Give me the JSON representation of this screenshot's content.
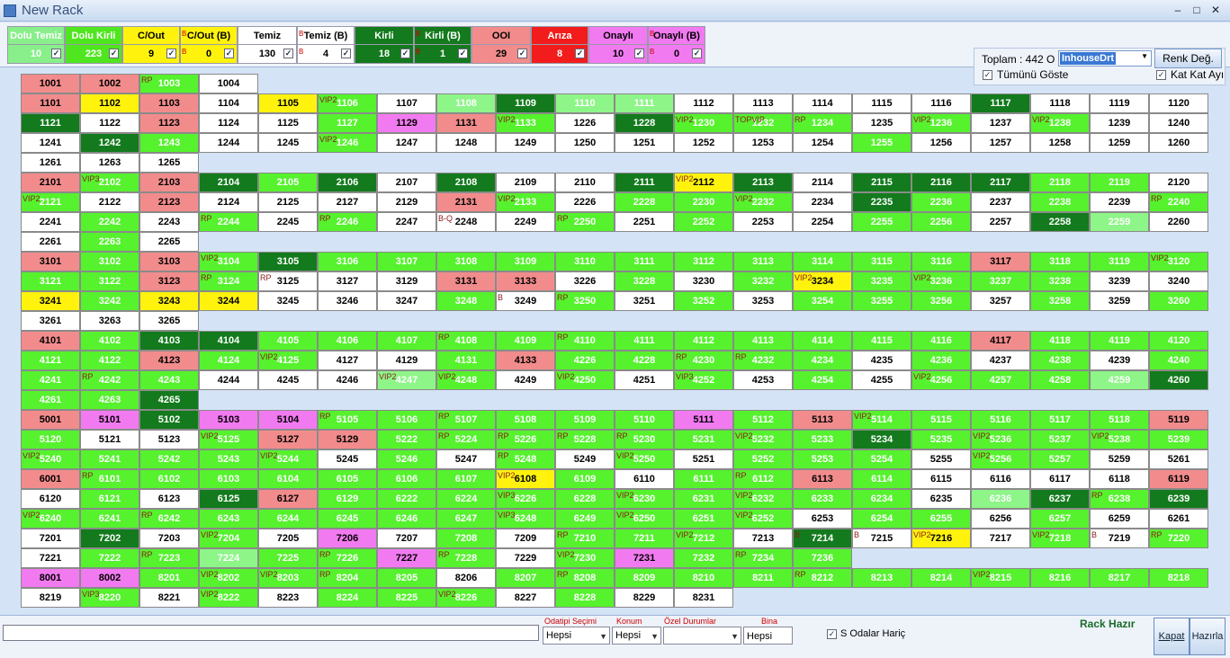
{
  "window": {
    "title": "New Rack"
  },
  "filters": [
    {
      "label": "Dolu Temiz",
      "value": "10",
      "checked": true,
      "color": "#88ef8a",
      "b": false
    },
    {
      "label": "Dolu Kirli",
      "value": "223",
      "checked": true,
      "color": "#4fe61f",
      "b": false
    },
    {
      "label": "C/Out",
      "value": "9",
      "checked": true,
      "color": "#fff30e",
      "b": false
    },
    {
      "label": "C/Out (B)",
      "value": "0",
      "checked": true,
      "color": "#fff30e",
      "b": true
    },
    {
      "label": "Temiz",
      "value": "130",
      "checked": true,
      "color": "#ffffff",
      "b": false
    },
    {
      "label": "Temiz (B)",
      "value": "4",
      "checked": true,
      "color": "#ffffff",
      "b": true
    },
    {
      "label": "Kirli",
      "value": "18",
      "checked": true,
      "color": "#137a1d",
      "b": false
    },
    {
      "label": "Kirli (B)",
      "value": "1",
      "checked": true,
      "color": "#137a1d",
      "b": true
    },
    {
      "label": "OOI",
      "value": "29",
      "checked": true,
      "color": "#f28c8c",
      "b": false
    },
    {
      "label": "Arıza",
      "value": "8",
      "checked": true,
      "color": "#f21c1c",
      "b": false
    },
    {
      "label": "Onaylı",
      "value": "10",
      "checked": true,
      "color": "#f27af0",
      "b": false
    },
    {
      "label": "Onaylı (B)",
      "value": "0",
      "checked": true,
      "color": "#f27af0",
      "b": true
    }
  ],
  "summary": {
    "total_label": "Toplam : 442 O",
    "dropdown_value": "InhouseDrt",
    "color_button": "Renk Değ.",
    "show_all": "Tümünü Göste",
    "show_all_checked": true,
    "floor_label": "Kat Kat Ayı",
    "floor_checked": true
  },
  "rack_rows": [
    "1001:R,1002:R,1003:L:RP,1004:W",
    "1101:R,1102:Y,1103:R,1104:W,1105:Y,1106:L:VIP2,1107:W,1108:M,1109:D,1110:M,1111:M,1112:W,1113:W,1114:W,1115:W,1116:W,1117:D,1118:W,1119:W,1120:W",
    "1121:D,1122:W,1123:R,1124:W,1125:W,1127:L,1129:P,1131:R,1133:L:VIP2,1226:W,1228:D,1230:L:VIP2,1232:L:TOPVIP,1234:L:RP,1235:W,1236:L:VIP2,1237:W,1238:L:VIP2,1239:W,1240:W",
    "1241:W,1242:D,1243:L,1244:W,1245:W,1246:L:VIP2,1247:W,1248:W,1249:W,1250:W,1251:W,1252:W,1253:W,1254:W,1255:L,1256:W,1257:W,1258:W,1259:W,1260:W",
    "1261:W,1263:W,1265:W",
    "2101:R,2102:L:VIP3,2103:R,2104:D,2105:L,2106:D,2107:W,2108:D,2109:W,2110:W,2111:D,2112:Y:VIP2,2113:D,2114:W,2115:D,2116:D,2117:D,2118:L,2119:L,2120:W",
    "2121:L:VIP2,2122:W,2123:R,2124:W,2125:W,2127:W,2129:W,2131:R,2133:L:VIP2,2226:W,2228:L,2230:L,2232:L:VIP2,2234:W,2235:D,2236:L,2237:W,2238:L,2239:W,2240:L:RP",
    "2241:W,2242:L,2243:W,2244:L:RP,2245:W,2246:L:RP,2247:W,2248:W:B-Q,2249:W,2250:L:RP,2251:W,2252:L,2253:W,2254:W,2255:L,2256:L,2257:W,2258:D,2259:M,2260:W",
    "2261:W,2263:L,2265:W",
    "3101:R,3102:L,3103:R,3104:L:VIP2,3105:D,3106:L,3107:L,3108:L,3109:L,3110:L,3111:L,3112:L,3113:L,3114:L,3115:L,3116:L,3117:R,3118:L,3119:L,3120:L:VIP2",
    "3121:L,3122:L,3123:R,3124:L:RP,3125:W:RP,3127:W,3129:W,3131:R,3133:R,3226:W,3228:L,3230:W,3232:L,3234:Y:VIP2,3235:L,3236:L:VIP2,3237:L,3238:L,3239:W,3240:W",
    "3241:Y,3242:L,3243:Y,3244:Y,3245:W,3246:W,3247:W,3248:L,3249:W:B,3250:L:RP,3251:W,3252:L,3253:W,3254:L,3255:L,3256:L,3257:W,3258:L,3259:W,3260:L",
    "3261:W,3263:W,3265:W",
    "4101:R,4102:L,4103:D,4104:D,4105:L,4106:L,4107:L,4108:L:RP,4109:L,4110:L:RP,4111:L,4112:L,4113:L,4114:L,4115:L,4116:L,4117:R,4118:L,4119:L,4120:L",
    "4121:L,4122:L,4123:R,4124:L,4125:L:VIP2,4127:W,4129:W,4131:L,4133:R,4226:L,4228:L,4230:L:RP,4232:L:RP,4234:L,4235:W,4236:L,4237:W,4238:L,4239:W,4240:L",
    "4241:L,4242:L:RP,4243:L,4244:W,4245:W,4246:W,4247:M:VIP2,4248:L:VIP2,4249:W,4250:L:VIP2,4251:W,4252:L:VIP3,4253:W,4254:L,4255:W,4256:L:VIP2,4257:L,4258:L,4259:M,4260:D",
    "4261:L,4263:L,4265:D",
    "5001:R,5101:P,5102:D,5103:P,5104:P,5105:L:RP,5106:L,5107:L:RP,5108:L,5109:L,5110:L,5111:P,5112:L,5113:R,5114:L:VIP2,5115:L,5116:L,5117:L,5118:L,5119:R",
    "5120:L,5121:W,5123:W,5125:L:VIP2,5127:R,5129:R,5222:L,5224:L:RP,5226:L:RP,5228:L:RP,5230:L:RP,5231:L,5232:L:VIP2,5233:L,5234:D,5235:L,5236:L:VIP2,5237:L,5238:L:VIP2,5239:L",
    "5240:L:VIP2,5241:L,5242:L,5243:L,5244:L:VIP2,5245:W,5246:L,5247:W,5248:L:RP,5249:W,5250:L:VIP2,5251:W,5252:L,5253:L,5254:L,5255:W,5256:L:VIP2,5257:L,5259:W,5261:W",
    "6001:R,6101:L:RP,6102:L,6103:L,6104:L,6105:L,6106:L,6107:L,6108:Y:VIP2,6109:L,6110:W,6111:L,6112:L:RP,6113:R,6114:L,6115:W,6116:W,6117:W,6118:W,6119:R",
    "6120:W,6121:L,6123:W,6125:D,6127:R,6129:L,6222:L,6224:L,6226:L:VIP3,6228:L,6230:L:VIP2,6231:L,6232:L:VIP2,6233:L,6234:L,6235:W,6236:M,6237:D,6238:L:RP,6239:D",
    "6240:L:VIP2,6241:L,6242:L:RP,6243:L,6244:L,6245:L,6246:L,6247:L,6248:L:VIP3,6249:L,6250:L:VIP2,6251:L,6252:L:VIP2,6253:W,6254:L,6255:L,6256:W,6257:L,6259:W,6261:W",
    "7201:W,7202:D,7203:W,7204:L:VIP2,7205:W,7206:P,7207:W,7208:L,7209:W,7210:L:RP,7211:L,7212:L:VIP2,7213:W,7214:D:B,7215:W:B,7216:Y:VIP2,7217:W,7218:L:VIP2,7219:W:B,7220:L:RP",
    "7221:W,7222:L,7223:L:RP,7224:M,7225:L,7226:L:RP,7227:P,7228:L:RP,7229:W,7230:L:VIP2,7231:P,7232:L,7234:L:RP,7236:L",
    "8001:P,8002:P,8201:L,8202:L:VIP2,8203:L:VIP2,8204:L:RP,8205:L,8206:W,8207:L,8208:L:RP,8209:L,8210:L,8211:L,8212:L:RP,8213:L,8214:L,8215:L:VIP2,8216:L,8217:L,8218:L",
    "8219:W,8220:L:VIP3,8221:W,8222:L:VIP2,8223:W,8224:L,8225:L,8226:L:VIP2,8227:W,8228:L,8229:W,8231:W"
  ],
  "bottom": {
    "odatipi_label": "Odatipi Seçimi",
    "odatipi_value": "Hepsi",
    "konum_label": "Konum",
    "konum_value": "Hepsi",
    "ozel_label": "Özel Durumlar",
    "ozel_value": "",
    "bina_label": "Bina",
    "bina_value": "Hepsi",
    "s_odalar": "S Odalar Hariç",
    "s_odalar_checked": true,
    "status": "Rack Hazır",
    "kapat": "Kapat",
    "hazirla": "Hazırla"
  }
}
